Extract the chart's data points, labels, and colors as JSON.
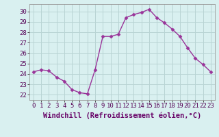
{
  "x": [
    0,
    1,
    2,
    3,
    4,
    5,
    6,
    7,
    8,
    9,
    10,
    11,
    12,
    13,
    14,
    15,
    16,
    17,
    18,
    19,
    20,
    21,
    22,
    23
  ],
  "y": [
    24.2,
    24.4,
    24.3,
    23.7,
    23.3,
    22.5,
    22.2,
    22.1,
    24.4,
    27.6,
    27.6,
    27.8,
    29.4,
    29.7,
    29.9,
    30.2,
    29.4,
    28.9,
    28.3,
    27.6,
    26.5,
    25.5,
    24.9,
    24.2
  ],
  "line_color": "#993399",
  "marker": "D",
  "marker_size": 2.5,
  "bg_color": "#d9f0f0",
  "grid_color": "#b8d4d4",
  "xlabel": "Windchill (Refroidissement éolien,°C)",
  "xlim": [
    -0.5,
    23.5
  ],
  "ylim": [
    21.5,
    30.7
  ],
  "yticks": [
    22,
    23,
    24,
    25,
    26,
    27,
    28,
    29,
    30
  ],
  "xticks": [
    0,
    1,
    2,
    3,
    4,
    5,
    6,
    7,
    8,
    9,
    10,
    11,
    12,
    13,
    14,
    15,
    16,
    17,
    18,
    19,
    20,
    21,
    22,
    23
  ],
  "xlabel_fontsize": 7.5,
  "tick_fontsize": 6.5,
  "linewidth": 1.0
}
